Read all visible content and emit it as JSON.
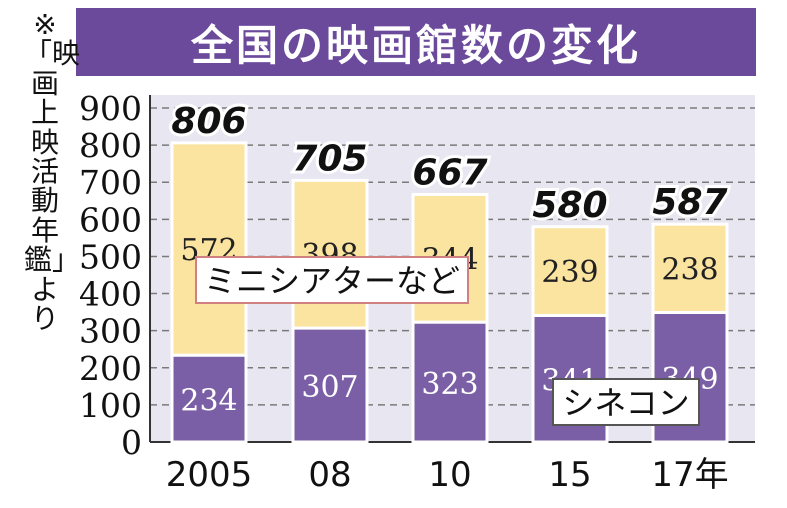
{
  "title": "全国の映画館数の変化",
  "source_note": "※「映画上映活動年鑑」より",
  "colors": {
    "title_bg": "#6b4a9c",
    "plot_bg": "#e8e6f0",
    "mini": "#fbe3a0",
    "cine": "#7b5fa6",
    "grid": "#7a7a7a"
  },
  "chart_data": {
    "type": "bar",
    "stacked": true,
    "categories": [
      "2005",
      "08",
      "10",
      "15",
      "17年"
    ],
    "series": [
      {
        "name": "シネコン",
        "values": [
          234,
          307,
          323,
          341,
          349
        ]
      },
      {
        "name": "ミニシアターなど",
        "values": [
          572,
          398,
          344,
          239,
          238
        ]
      }
    ],
    "totals": [
      806,
      705,
      667,
      580,
      587
    ],
    "ylim": [
      0,
      900
    ],
    "yticks": [
      0,
      100,
      200,
      300,
      400,
      500,
      600,
      700,
      800,
      900
    ],
    "grid": true
  }
}
